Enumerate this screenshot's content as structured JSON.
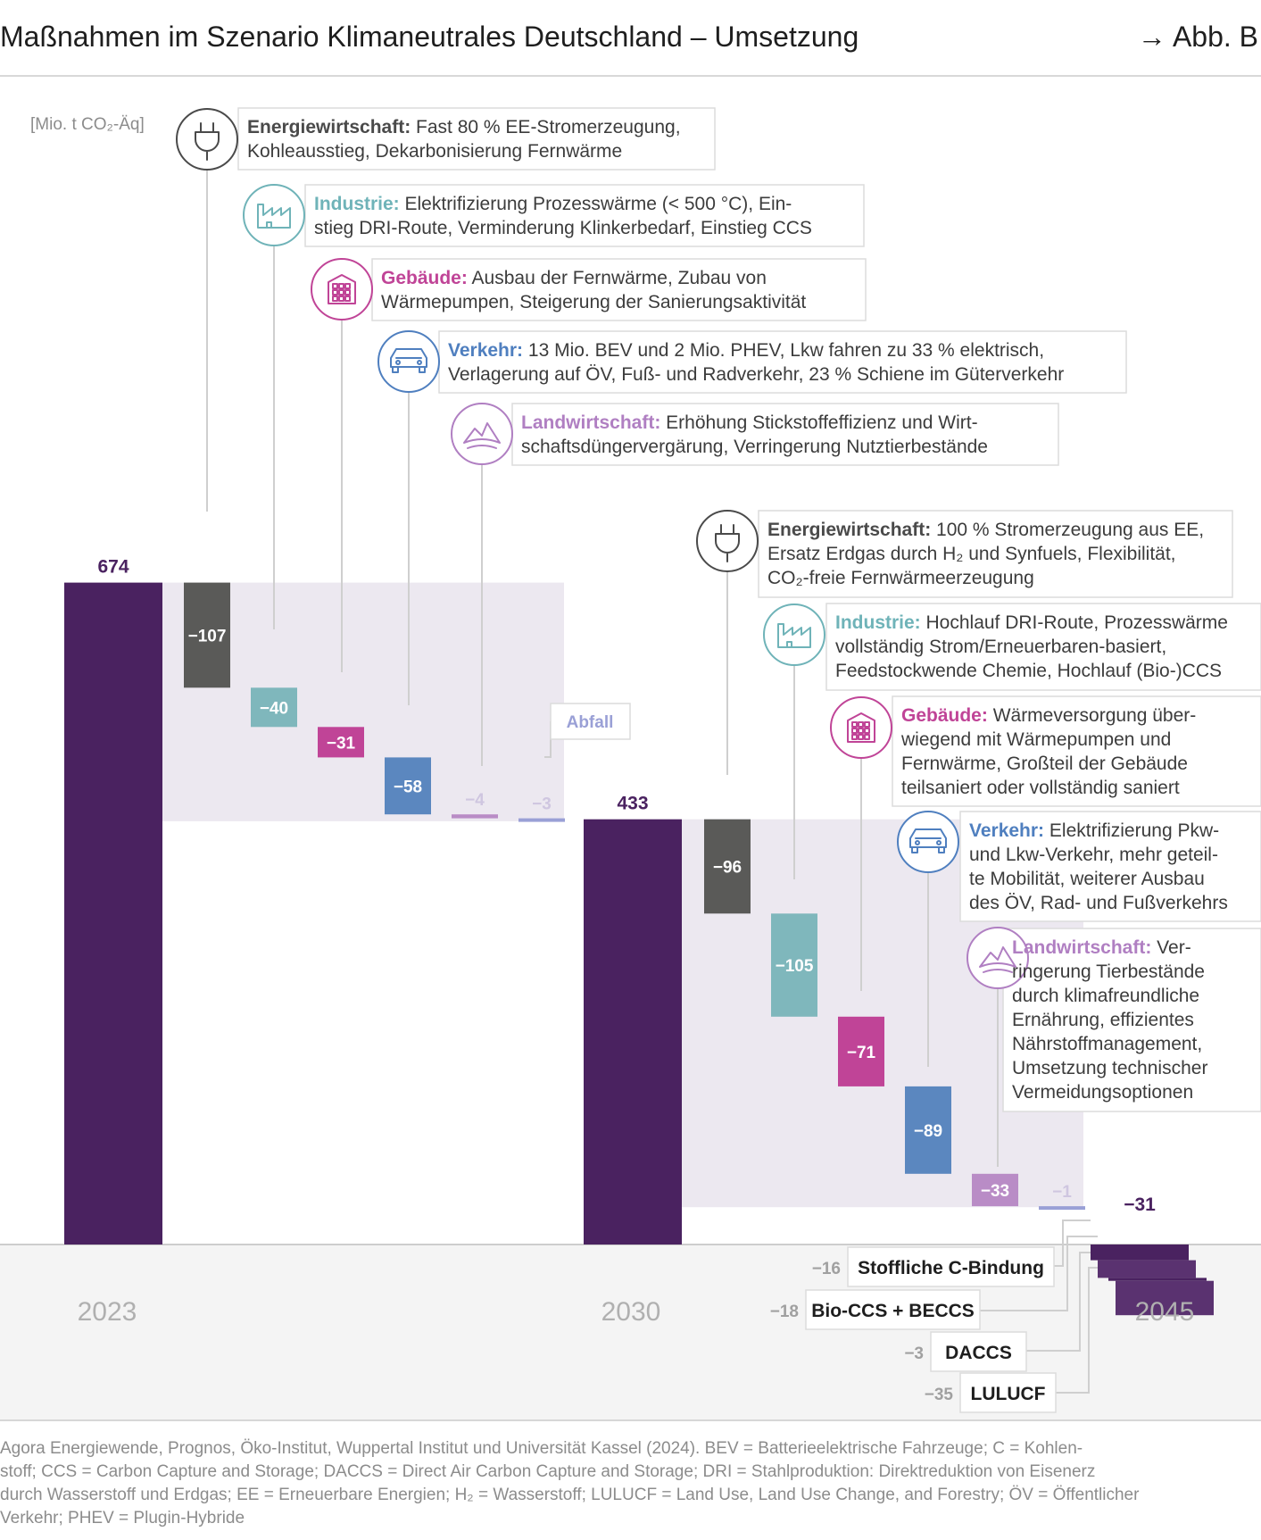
{
  "header": {
    "title": "Maßnahmen im Szenario Klimaneutrales Deutschland – Umsetzung",
    "figure_ref": "→ Abb. B"
  },
  "colors": {
    "total": "#4a2260",
    "energie": "#5a5a58",
    "industrie": "#7fb7bc",
    "gebaeude": "#c04497",
    "verkehr": "#5b87bf",
    "landwirtschaft": "#b98cc6",
    "abfall": "#9aa0d6",
    "remaining": "#4a2260",
    "band": "#ece8f0"
  },
  "chart_data": {
    "type": "waterfall",
    "unit": "[Mio. t CO₂-Äq]",
    "periods": [
      "2023",
      "2030",
      "2045"
    ],
    "totals": [
      {
        "period": "2023",
        "value": 674
      },
      {
        "period": "2030",
        "value": 433
      },
      {
        "period": "2045",
        "value": -31
      }
    ],
    "steps_2023_2030": [
      {
        "sector": "Energiewirtschaft",
        "value": -107,
        "label": "−107"
      },
      {
        "sector": "Industrie",
        "value": -40,
        "label": "−40"
      },
      {
        "sector": "Gebäude",
        "value": -31,
        "label": "−31"
      },
      {
        "sector": "Verkehr",
        "value": -58,
        "label": "−58"
      },
      {
        "sector": "Landwirtschaft",
        "value": -4,
        "label": "−4"
      },
      {
        "sector": "Abfall",
        "value": -3,
        "label": "−3"
      }
    ],
    "steps_2030_2045": [
      {
        "sector": "Energiewirtschaft",
        "value": -96,
        "label": "−96"
      },
      {
        "sector": "Industrie",
        "value": -105,
        "label": "−105"
      },
      {
        "sector": "Gebäude",
        "value": -71,
        "label": "−71"
      },
      {
        "sector": "Verkehr",
        "value": -89,
        "label": "−89"
      },
      {
        "sector": "Landwirtschaft",
        "value": -33,
        "label": "−33"
      },
      {
        "sector": "Abfall",
        "value": -1,
        "label": "−1"
      }
    ],
    "remaining_2045": [
      {
        "name": "Stoffliche C-Bindung",
        "value": -16,
        "label": "−16"
      },
      {
        "name": "Bio-CCS + BECCS",
        "value": -18,
        "label": "−18"
      },
      {
        "name": "DACCS",
        "value": -3,
        "label": "−3"
      },
      {
        "name": "LULUCF",
        "value": -35,
        "label": "−35"
      }
    ],
    "total_labels": [
      "674",
      "433",
      "−31"
    ],
    "abfall_label": "Abfall"
  },
  "annotations_2030": [
    {
      "cat": "Energiewirtschaft:",
      "lines": [
        " Fast 80 % EE-Stromerzeugung,",
        "Kohleausstieg, Dekarbonisierung Fernwärme"
      ]
    },
    {
      "cat": "Industrie:",
      "lines": [
        " Elektrifizierung Prozesswärme (< 500 °C), Ein-",
        "stieg DRI-Route, Verminderung Klinkerbedarf, Einstieg CCS"
      ]
    },
    {
      "cat": "Gebäude:",
      "lines": [
        " Ausbau der Fernwärme, Zubau von",
        "Wärmepumpen, Steigerung der Sanierungsaktivität"
      ]
    },
    {
      "cat": "Verkehr:",
      "lines": [
        " 13 Mio. BEV und 2 Mio. PHEV, Lkw fahren zu 33 % elektrisch,",
        "Verlagerung auf ÖV, Fuß- und Radverkehr, 23 % Schiene im Güterverkehr"
      ]
    },
    {
      "cat": "Landwirtschaft:",
      "lines": [
        " Erhöhung Stickstoffeffizienz und Wirt-",
        "schaftsdüngervergärung, Verringerung Nutztierbestände"
      ]
    }
  ],
  "annotations_2045": [
    {
      "cat": "Energiewirtschaft:",
      "lines": [
        " 100 % Stromerzeugung aus EE,",
        "Ersatz Erdgas durch H₂ und Synfuels, Flexibilität,",
        "CO₂-freie Fernwärmeerzeugung"
      ]
    },
    {
      "cat": "Industrie:",
      "lines": [
        " Hochlauf DRI-Route, Prozesswärme",
        "vollständig Strom/Erneuerbaren-basiert,",
        "Feedstockwende Chemie, Hochlauf (Bio-)CCS"
      ]
    },
    {
      "cat": "Gebäude:",
      "lines": [
        " Wärmeversorgung über-",
        "wiegend mit Wärmepumpen und",
        "Fernwärme, Großteil der Gebäude",
        "teilsaniert oder vollständig saniert"
      ]
    },
    {
      "cat": "Verkehr:",
      "lines": [
        " Elektrifizierung Pkw-",
        "und Lkw-Verkehr, mehr geteil-",
        "te Mobilität, weiterer Ausbau",
        "des ÖV, Rad- und Fußverkehrs"
      ]
    },
    {
      "cat": "Landwirtschaft:",
      "lines": [
        " Ver-",
        "ringerung Tierbestände",
        "durch klimafreundliche",
        "Ernährung, effizientes",
        "Nährstoffmanagement,",
        "Umsetzung technischer",
        "Vermeidungsoptionen"
      ]
    }
  ],
  "source_lines": [
    "Agora Energiewende, Prognos, Öko-Institut, Wuppertal Institut und Universität Kassel (2024). BEV = Batterieelektrische Fahrzeuge; C = Kohlen-",
    "stoff; CCS = Carbon Capture and Storage; DACCS = Direct Air Carbon Capture and Storage; DRI = Stahlproduktion: Direktreduktion von Eisenerz",
    "durch Wasserstoff und Erdgas; EE = Erneuerbare Energien; H₂ = Wasserstoff; LULUCF = Land Use, Land Use Change, and Forestry; ÖV = Öffentlicher",
    "Verkehr; PHEV = Plugin-Hybride"
  ]
}
